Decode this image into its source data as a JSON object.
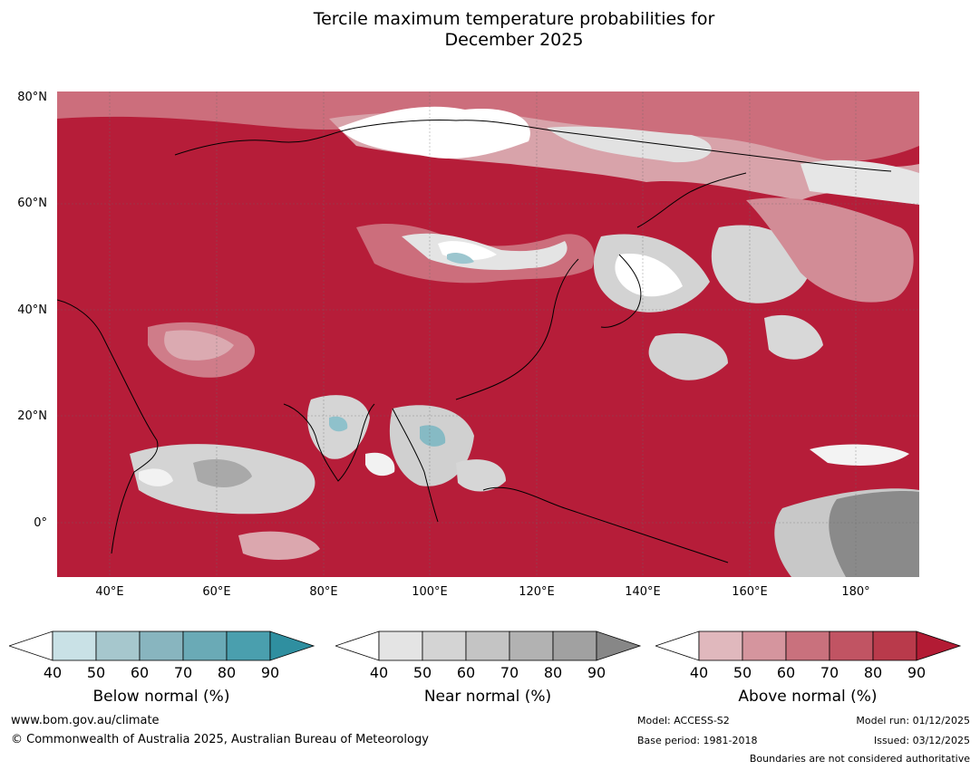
{
  "title": {
    "line1": "Tercile maximum temperature probabilities for",
    "line2": "December 2025"
  },
  "map": {
    "lat_labels": [
      "80°N",
      "60°N",
      "40°N",
      "20°N",
      "0°"
    ],
    "lon_labels": [
      "40°E",
      "60°E",
      "80°E",
      "100°E",
      "120°E",
      "140°E",
      "160°E",
      "180°"
    ],
    "background_color": "#b61d39"
  },
  "colorbars": [
    {
      "title": "Below normal (%)",
      "ticks": [
        "40",
        "50",
        "60",
        "70",
        "80",
        "90"
      ],
      "colors": [
        "#ffffff",
        "#c9e1e6",
        "#a6c7cd",
        "#88b5bf",
        "#6aaab6",
        "#4a9fae",
        "#2f8fa0"
      ]
    },
    {
      "title": "Near normal (%)",
      "ticks": [
        "40",
        "50",
        "60",
        "70",
        "80",
        "90"
      ],
      "colors": [
        "#ffffff",
        "#e4e4e4",
        "#d4d4d4",
        "#c4c4c4",
        "#b2b2b2",
        "#a1a1a1",
        "#878787"
      ]
    },
    {
      "title": "Above normal (%)",
      "ticks": [
        "40",
        "50",
        "60",
        "70",
        "80",
        "90"
      ],
      "colors": [
        "#ffffff",
        "#e0b8bd",
        "#d5959e",
        "#c9717d",
        "#c15463",
        "#b93a4b",
        "#b31b34"
      ]
    }
  ],
  "footer": {
    "website": "www.bom.gov.au/climate",
    "copyright": "© Commonwealth of Australia 2025, Australian Bureau of Meteorology",
    "model": "Model: ACCESS-S2",
    "base_period": "Base period: 1981-2018",
    "model_run": "Model run: 01/12/2025",
    "issued": "Issued: 03/12/2025",
    "disclaimer": "Boundaries are not considered authoritative"
  }
}
